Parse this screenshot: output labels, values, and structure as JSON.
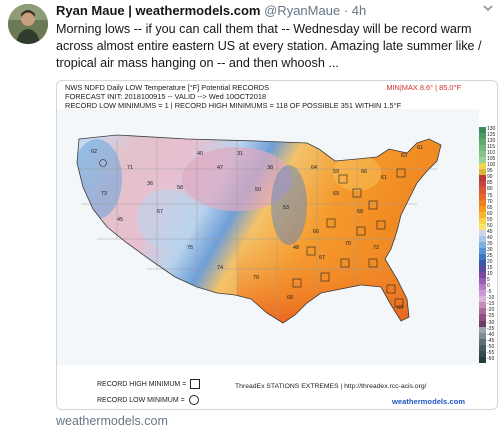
{
  "tweet": {
    "display_name": "Ryan Maue | weathermodels.com",
    "handle": "@RyanMaue",
    "separator": "·",
    "time": "4h",
    "text": "Morning lows -- if you can call them that -- Wednesday will be record warm across almost entire eastern US at every station.  Amazing late summer like / tropical air mass hanging on -- and then whoosh ...",
    "link_domain": "weathermodels.com",
    "menu_icon": "chevron-down-icon"
  },
  "figure": {
    "title": "NWS NDFD Daily LOW Temperature [°F] Potential RECORDS",
    "forecast_line": "FORECAST INIT: 2018100915 -- VALID --> Wed 10OCT2018",
    "records_line": "RECORD LOW MINIMUMS = 1 | RECORD HIGH MINIMUMS = 118 OF POSSIBLE 351 WITHIN 1.5°F",
    "minmax": "MIN|MAX 8.6° | 85.0°F",
    "legend_high": "RECORD HIGH MINIMUM =",
    "legend_low": "RECORD LOW MINIMUM =",
    "source": "ThreadEx STATIONS EXTREMES | http://threadex.rcc-acis.org/",
    "brand": "weathermodels.com",
    "colorbar_labels": [
      "130",
      "125",
      "120",
      "115",
      "110",
      "105",
      "100",
      "95",
      "90",
      "85",
      "80",
      "75",
      "70",
      "65",
      "60",
      "55",
      "50",
      "45",
      "40",
      "35",
      "30",
      "25",
      "20",
      "15",
      "10",
      "5",
      "0",
      "-5",
      "-10",
      "-15",
      "-20",
      "-25",
      "-30",
      "-35",
      "-40",
      "-45",
      "-50",
      "-55",
      "-60"
    ],
    "colorbar_colors": [
      "#3f8a5a",
      "#4f9a64",
      "#60aa6e",
      "#72b878",
      "#86c488",
      "#9acf98",
      "#f2d34c",
      "#d9b441",
      "#b8393a",
      "#c8453b",
      "#d65636",
      "#e66a2a",
      "#ee7f22",
      "#f39a21",
      "#f8b62f",
      "#fbd14a",
      "#fbe36a",
      "#cdd9eb",
      "#a9c6e4",
      "#7eb0dd",
      "#5a95d3",
      "#3f76c4",
      "#3959ac",
      "#5a4b9e",
      "#7a4aa6",
      "#9b5db3",
      "#b77cc4",
      "#c99ad3",
      "#d8b6df",
      "#c58eb3",
      "#ad6b9b",
      "#8f4f82",
      "#6e3b6b",
      "#9aa7ad",
      "#7e8d94",
      "#5f6f76",
      "#4a5a61",
      "#384a52",
      "#273a42"
    ],
    "sample_map_values": [
      "62",
      "73",
      "71",
      "67",
      "75",
      "74",
      "70",
      "68",
      "66",
      "47",
      "50",
      "53",
      "69",
      "68",
      "61",
      "70",
      "72",
      "63",
      "61",
      "58",
      "40",
      "31",
      "38",
      "36",
      "45",
      "67",
      "48",
      "64",
      "59",
      "66",
      "69"
    ]
  }
}
